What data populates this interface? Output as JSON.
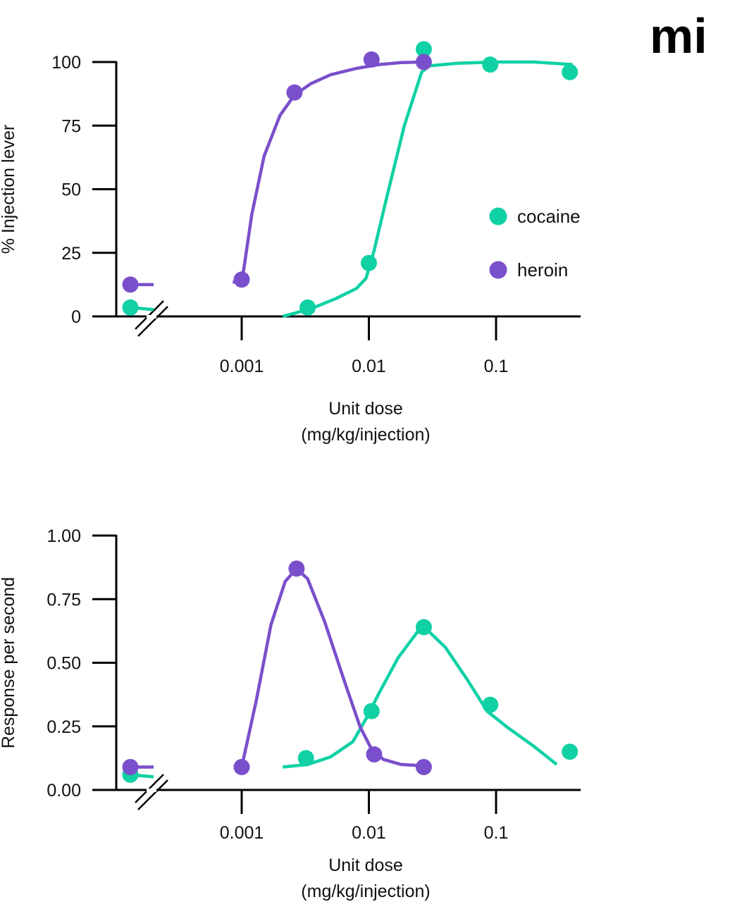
{
  "logo": {
    "text": "mi",
    "icon": "journal-logo-icon"
  },
  "colors": {
    "cocaine": "#0fd1a4",
    "heroin": "#7a4fcb",
    "axis": "#000000"
  },
  "chart_data": [
    {
      "type": "line",
      "panel": "top",
      "title": "",
      "xlabel_lines": [
        "Unit dose",
        "(mg/kg/injection)"
      ],
      "ylabel": "% Injection lever",
      "xscale": "log",
      "xlim": [
        0.0006,
        0.45
      ],
      "ylim": [
        0,
        100
      ],
      "x_ticks": [
        0.001,
        0.01,
        0.1
      ],
      "x_tick_labels": [
        "0.001",
        "0.01",
        "0.1"
      ],
      "y_ticks": [
        0,
        25,
        50,
        75,
        100
      ],
      "y_tick_labels": [
        "0",
        "25",
        "50",
        "75",
        "100"
      ],
      "axis_break": true,
      "grid": false,
      "legend": {
        "placement": "center-right",
        "entries": [
          "cocaine",
          "heroin"
        ]
      },
      "series": [
        {
          "name": "cocaine",
          "control": 3.5,
          "x": [
            0.0033,
            0.01,
            0.027,
            0.09,
            0.38
          ],
          "values": [
            3.5,
            21,
            105,
            99,
            96
          ],
          "fit_x": [
            0.0021,
            0.0035,
            0.0055,
            0.008,
            0.0095,
            0.011,
            0.014,
            0.019,
            0.026,
            0.03,
            0.05,
            0.1,
            0.2,
            0.4
          ],
          "fit_y": [
            0,
            3,
            7,
            11,
            15,
            26,
            48,
            75,
            96,
            98.5,
            99.5,
            100,
            100,
            99
          ]
        },
        {
          "name": "heroin",
          "control": 12.5,
          "x": [
            0.001,
            0.0026,
            0.0105,
            0.027
          ],
          "values": [
            14.5,
            88,
            101,
            100
          ],
          "fit_x": [
            0.00085,
            0.00097,
            0.00102,
            0.0012,
            0.0015,
            0.002,
            0.0026,
            0.0035,
            0.005,
            0.008,
            0.012,
            0.018,
            0.027
          ],
          "fit_y": [
            13.5,
            13.5,
            16,
            40,
            63,
            79,
            87,
            91.5,
            95,
            97.5,
            99,
            99.8,
            100
          ]
        }
      ]
    },
    {
      "type": "line",
      "panel": "bottom",
      "title": "",
      "xlabel_lines": [
        "Unit dose",
        "(mg/kg/injection)"
      ],
      "ylabel": "Response per second",
      "xscale": "log",
      "xlim": [
        0.0006,
        0.45
      ],
      "ylim": [
        0,
        1.0
      ],
      "x_ticks": [
        0.001,
        0.01,
        0.1
      ],
      "x_tick_labels": [
        "0.001",
        "0.01",
        "0.1"
      ],
      "y_ticks": [
        0,
        0.25,
        0.5,
        0.75,
        1.0
      ],
      "y_tick_labels": [
        "0.00",
        "0.25",
        "0.50",
        "0.75",
        "1.00"
      ],
      "axis_break": true,
      "grid": false,
      "legend": null,
      "series": [
        {
          "name": "cocaine",
          "control": 0.06,
          "x": [
            0.0032,
            0.0105,
            0.027,
            0.09,
            0.38
          ],
          "values": [
            0.125,
            0.31,
            0.64,
            0.335,
            0.15
          ],
          "fit_x": [
            0.0021,
            0.0033,
            0.005,
            0.0075,
            0.0095,
            0.012,
            0.017,
            0.024,
            0.028,
            0.04,
            0.06,
            0.085,
            0.12,
            0.2,
            0.3
          ],
          "fit_y": [
            0.09,
            0.1,
            0.13,
            0.19,
            0.28,
            0.38,
            0.52,
            0.62,
            0.635,
            0.56,
            0.43,
            0.31,
            0.25,
            0.17,
            0.1
          ]
        },
        {
          "name": "heroin",
          "control": 0.09,
          "x": [
            0.001,
            0.0027,
            0.011,
            0.027
          ],
          "values": [
            0.09,
            0.87,
            0.14,
            0.09
          ],
          "fit_x": [
            0.00088,
            0.001,
            0.0013,
            0.0017,
            0.0022,
            0.0027,
            0.0033,
            0.0045,
            0.0065,
            0.0085,
            0.0105,
            0.013,
            0.018,
            0.027
          ],
          "fit_y": [
            0.09,
            0.09,
            0.35,
            0.65,
            0.82,
            0.87,
            0.83,
            0.66,
            0.42,
            0.25,
            0.16,
            0.12,
            0.1,
            0.095
          ]
        }
      ]
    }
  ]
}
